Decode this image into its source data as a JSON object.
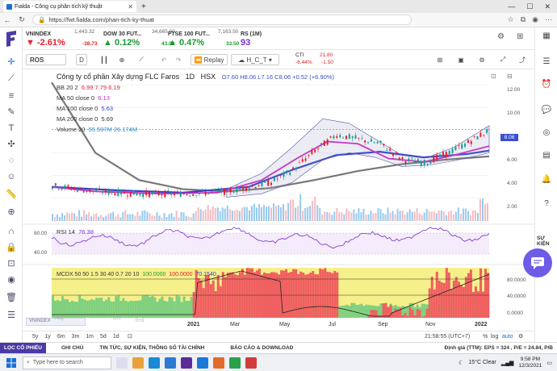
{
  "browser": {
    "tab_title": "Fialda - Công cụ phân tích kỹ thuật",
    "url": "https://fwt.fialda.com/phan-tich-ky-thuat"
  },
  "tickers": [
    {
      "name": "VNINDEX",
      "price": "1,443.32",
      "pct": "-2.61%",
      "change": "-38.73",
      "color": "red",
      "arrow": "▼"
    },
    {
      "name": "DOW 30 FUT...",
      "price": "34,665.00",
      "pct": "0.12%",
      "change": "43.00",
      "color": "green",
      "arrow": "▲"
    },
    {
      "name": "FTSE 100 FUT...",
      "price": "7,163.50",
      "pct": "0.47%",
      "change": "33.50",
      "color": "green",
      "arrow": "▲"
    },
    {
      "name": "RS (1M)",
      "price": "",
      "pct": "93",
      "change": "",
      "color": "purple",
      "arrow": ""
    }
  ],
  "toolbar": {
    "symbol": "ROS",
    "interval": "D",
    "replay": "Replay",
    "chart_style": "H_C_T",
    "cti_label": "CTI",
    "cti_price": "21.80",
    "cti_pct": "-6.44%",
    "cti_change": "-1.50"
  },
  "chart": {
    "title": "Công ty cổ phần Xây dựng FLC Faros",
    "timeframe": "1D",
    "exchange": "HSX",
    "ohlc": "O7.60 H8.06 L7.16 C8.06 +0.52 (+6.90%)",
    "legend": [
      {
        "label": "BB 20 2",
        "values": "6.99  7.79  6.19"
      },
      {
        "label": "MA 50 close 0",
        "values": "6.13"
      },
      {
        "label": "MA 100 close 0",
        "values": "5.63"
      },
      {
        "label": "MA 200 close 0",
        "values": "5.69"
      },
      {
        "label": "Volume 20",
        "values": "55.597M  26.174M"
      }
    ],
    "price_axis": [
      "12.00",
      "10.00",
      "8.06",
      "6.00",
      "4.00",
      "2.00"
    ],
    "last_price": "8.06",
    "rsi_label": "RSI 14",
    "rsi_value": "76.38",
    "rsi_axis": [
      "80.00",
      "40.00"
    ],
    "mcdx_label": "MCDX 50 50 1.5 30 40 0.7 20 10",
    "mcdx_values": [
      "100.0000",
      "100.0000",
      "70.1540"
    ],
    "mcdx_axis": [
      "80.0000",
      "40.0000",
      "0.0000"
    ],
    "x_axis": [
      "2021",
      "Mar",
      "May",
      "Jul",
      "Sep",
      "Nov",
      "2022"
    ],
    "x_axis_faded": [
      "Aug",
      "Oct",
      "0+3"
    ],
    "faded_symbol": "VNINDEX"
  },
  "bottom": {
    "ranges": [
      "5y",
      "1y",
      "6m",
      "3m",
      "1m",
      "5d",
      "1d"
    ],
    "clock": "21:58:55 (UTC+7)",
    "pct": "%",
    "log": "log",
    "auto": "auto"
  },
  "footer": {
    "items": [
      "LỌC CỔ PHIẾU",
      "GHI CHÚ",
      "TIN TỨC, SỰ KIỆN, THÔNG SỐ TÀI CHÍNH",
      "BÁO CÁO & DOWNLOAD"
    ],
    "valuation": "Định giá (TTM): EPS = 324 , P/E = 24.84, P/B"
  },
  "right_rail": {
    "su_kien": "SỰ KIỆN"
  },
  "taskbar": {
    "search": "Type here to search",
    "weather": "15°C Clear",
    "time": "9:58 PM",
    "date": "12/3/2021"
  },
  "chart_data": {
    "type": "line",
    "price_axis": {
      "min": 0,
      "max": 12.5
    },
    "series": [
      {
        "name": "Price",
        "x": [
          0,
          10,
          20,
          30,
          40,
          50,
          55,
          60,
          65,
          70,
          75,
          80,
          85,
          90,
          95,
          100
        ],
        "y": [
          3.1,
          2.6,
          2.4,
          2.4,
          2.6,
          3.4,
          4.5,
          6.2,
          7.6,
          7.2,
          6.8,
          5.4,
          5.1,
          5.9,
          6.9,
          8.06
        ]
      },
      {
        "name": "MA 200 close 0",
        "x": [
          0,
          10,
          20,
          30,
          40,
          50,
          60,
          70,
          80,
          90,
          100
        ],
        "y": [
          12.2,
          6.0,
          3.6,
          2.8,
          2.6,
          2.9,
          3.6,
          4.4,
          5.0,
          5.4,
          5.69
        ]
      }
    ]
  }
}
